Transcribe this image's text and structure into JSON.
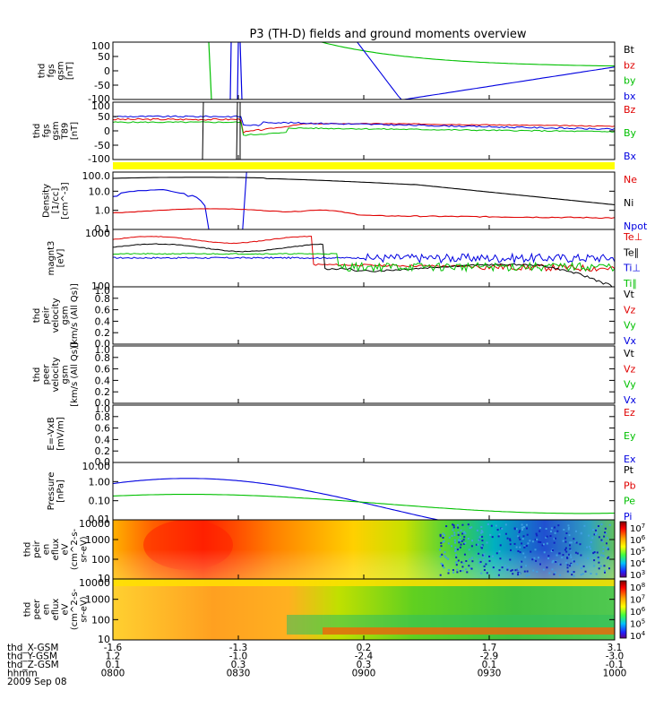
{
  "title": "P3 (TH-D) fields and ground moments overview",
  "chart_data": [
    {
      "type": "line",
      "ylabel": [
        "thd",
        "fgs",
        "gsm",
        "[nT]"
      ],
      "ylim": [
        -100,
        100
      ],
      "yticks": [
        "100",
        "50",
        "0",
        "-50",
        "-100"
      ],
      "legend": [
        {
          "name": "Bt",
          "color": "#000000"
        },
        {
          "name": "bz",
          "color": "#e00000"
        },
        {
          "name": "by",
          "color": "#00c000"
        },
        {
          "name": "bx",
          "color": "#0000e0"
        }
      ]
    },
    {
      "type": "line",
      "ylabel": [
        "thd",
        "fgs",
        "gsm",
        "T89",
        "[nT]"
      ],
      "ylim": [
        -100,
        100
      ],
      "yticks": [
        "100",
        "50",
        "0",
        "-50",
        "-100"
      ],
      "legend": [
        {
          "name": "Bz",
          "color": "#e00000"
        },
        {
          "name": "By",
          "color": "#00c000"
        },
        {
          "name": "Bx",
          "color": "#0000e0"
        }
      ]
    },
    {
      "type": "line",
      "ylabel": [
        "Density",
        "[1/cc]",
        "[cm^-3]"
      ],
      "scale": "log",
      "ylim": [
        0.1,
        100
      ],
      "yticks": [
        "100.0",
        "10.0",
        "1.0",
        "0.1"
      ],
      "legend": [
        {
          "name": "Ne",
          "color": "#e00000"
        },
        {
          "name": "Ni",
          "color": "#000000"
        },
        {
          "name": "Npot",
          "color": "#0000e0"
        }
      ]
    },
    {
      "type": "line",
      "ylabel": [
        "magnt3",
        "[eV]"
      ],
      "scale": "log",
      "ylim": [
        100,
        1000
      ],
      "yticks": [
        "1000",
        "100"
      ],
      "legend": [
        {
          "name": "Te⊥",
          "color": "#e00000"
        },
        {
          "name": "Te∥",
          "color": "#000000"
        },
        {
          "name": "Ti⊥",
          "color": "#0000e0"
        },
        {
          "name": "Ti∥",
          "color": "#00c000"
        }
      ]
    },
    {
      "type": "line",
      "ylabel": [
        "thd",
        "peir",
        "velocity",
        "gsm",
        "[km/s (All Qs)]"
      ],
      "ylim": [
        0,
        1
      ],
      "yticks": [
        "1.0",
        "0.8",
        "0.6",
        "0.4",
        "0.2",
        "0.0"
      ],
      "legend": [
        {
          "name": "Vt",
          "color": "#000000"
        },
        {
          "name": "Vz",
          "color": "#e00000"
        },
        {
          "name": "Vy",
          "color": "#00c000"
        },
        {
          "name": "Vx",
          "color": "#0000e0"
        }
      ]
    },
    {
      "type": "line",
      "ylabel": [
        "thd",
        "peer",
        "velocity",
        "gsm",
        "[km/s (All Qs)]"
      ],
      "ylim": [
        0,
        1
      ],
      "yticks": [
        "1.0",
        "0.8",
        "0.6",
        "0.4",
        "0.2",
        "0.0"
      ],
      "legend": [
        {
          "name": "Vt",
          "color": "#000000"
        },
        {
          "name": "Vz",
          "color": "#e00000"
        },
        {
          "name": "Vy",
          "color": "#00c000"
        },
        {
          "name": "Vx",
          "color": "#0000e0"
        }
      ]
    },
    {
      "type": "line",
      "ylabel": [
        "E=-VxB",
        "[mV/m]"
      ],
      "ylim": [
        0,
        1
      ],
      "yticks": [
        "1.0",
        "0.8",
        "0.6",
        "0.4",
        "0.2",
        "0.0"
      ],
      "legend": [
        {
          "name": "Ez",
          "color": "#e00000"
        },
        {
          "name": "Ey",
          "color": "#00c000"
        },
        {
          "name": "Ex",
          "color": "#0000e0"
        }
      ]
    },
    {
      "type": "line",
      "ylabel": [
        "Pressure",
        "[nPa]"
      ],
      "scale": "log",
      "ylim": [
        0.005,
        20
      ],
      "yticks": [
        "10.00",
        "1.00",
        "0.10",
        "0.01"
      ],
      "legend": [
        {
          "name": "Pt",
          "color": "#000000"
        },
        {
          "name": "Pb",
          "color": "#e00000"
        },
        {
          "name": "Pe",
          "color": "#00c000"
        },
        {
          "name": "Pi",
          "color": "#0000e0"
        }
      ]
    },
    {
      "type": "heatmap",
      "ylabel": [
        "thd",
        "peir",
        "en",
        "eflux",
        "eV",
        "(cm^2-s-",
        "sr-eV)"
      ],
      "yticks": [
        "10000",
        "1000",
        "100",
        "10"
      ],
      "colorbar": [
        "10^7",
        "10^6",
        "10^5",
        "10^4",
        "10^3"
      ]
    },
    {
      "type": "heatmap",
      "ylabel": [
        "thd",
        "peer",
        "en",
        "eflux",
        "eV",
        "(cm^2-s-",
        "sr-eV)"
      ],
      "yticks": [
        "10000",
        "1000",
        "100",
        "10"
      ],
      "colorbar": [
        "10^8",
        "10^7",
        "10^6",
        "10^5",
        "10^4"
      ]
    }
  ],
  "time_axis": {
    "rows": [
      {
        "label": "thd_X-GSM",
        "values": [
          "-1.6",
          "-1.3",
          "0.2",
          "1.7",
          "3.1"
        ]
      },
      {
        "label": "thd_Y-GSM",
        "values": [
          "1.2",
          "-1.0",
          "-2.4",
          "-2.9",
          "-3.0"
        ]
      },
      {
        "label": "thd_Z-GSM",
        "values": [
          "0.1",
          "0.3",
          "0.3",
          "0.1",
          "-0.1"
        ]
      },
      {
        "label": "hhmm",
        "values": [
          "0800",
          "0830",
          "0900",
          "0930",
          "1000"
        ]
      }
    ],
    "date": "2009 Sep 08"
  }
}
